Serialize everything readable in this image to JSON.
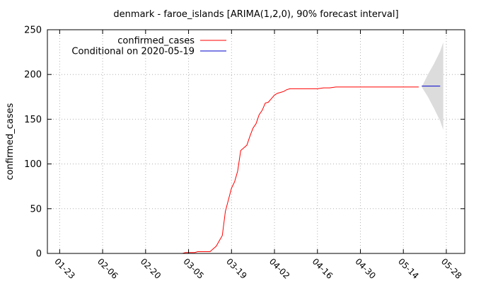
{
  "chart_data": {
    "type": "line",
    "title": "denmark - faroe_islands [ARIMA(1,2,0), 90% forecast interval]",
    "xlabel": "",
    "ylabel": "confirmed_cases",
    "ylim": [
      0,
      250
    ],
    "yticks": [
      0,
      50,
      100,
      150,
      200,
      250
    ],
    "xlim_day": [
      -4,
      132
    ],
    "xticks": [
      {
        "label": "01-23",
        "day": 0
      },
      {
        "label": "02-06",
        "day": 14
      },
      {
        "label": "02-20",
        "day": 28
      },
      {
        "label": "03-05",
        "day": 42
      },
      {
        "label": "03-19",
        "day": 56
      },
      {
        "label": "04-02",
        "day": 70
      },
      {
        "label": "04-16",
        "day": 84
      },
      {
        "label": "04-30",
        "day": 98
      },
      {
        "label": "05-14",
        "day": 112
      },
      {
        "label": "05-28",
        "day": 126
      }
    ],
    "grid": true,
    "legend_position": "top-left",
    "series": [
      {
        "name": "confirmed_cases",
        "color": "#ff0000",
        "points": [
          [
            0,
            0
          ],
          [
            10,
            0
          ],
          [
            20,
            0
          ],
          [
            30,
            0
          ],
          [
            40,
            0
          ],
          [
            41,
            1
          ],
          [
            42,
            1
          ],
          [
            43,
            1
          ],
          [
            44,
            1
          ],
          [
            45,
            2
          ],
          [
            46,
            2
          ],
          [
            47,
            2
          ],
          [
            48,
            2
          ],
          [
            49,
            2
          ],
          [
            50,
            5
          ],
          [
            51,
            8
          ],
          [
            52,
            14
          ],
          [
            53,
            20
          ],
          [
            54,
            47
          ],
          [
            55,
            60
          ],
          [
            56,
            73
          ],
          [
            57,
            80
          ],
          [
            58,
            92
          ],
          [
            59,
            115
          ],
          [
            60,
            118
          ],
          [
            61,
            121
          ],
          [
            62,
            131
          ],
          [
            63,
            140
          ],
          [
            64,
            145
          ],
          [
            65,
            155
          ],
          [
            66,
            160
          ],
          [
            67,
            168
          ],
          [
            68,
            169
          ],
          [
            69,
            173
          ],
          [
            70,
            177
          ],
          [
            71,
            179
          ],
          [
            72,
            180
          ],
          [
            73,
            181
          ],
          [
            74,
            183
          ],
          [
            75,
            184
          ],
          [
            76,
            184
          ],
          [
            80,
            184
          ],
          [
            84,
            184
          ],
          [
            86,
            185
          ],
          [
            88,
            185
          ],
          [
            90,
            186
          ],
          [
            95,
            186
          ],
          [
            100,
            186
          ],
          [
            105,
            186
          ],
          [
            110,
            186
          ],
          [
            117,
            186
          ]
        ]
      },
      {
        "name": "Conditional on 2020-05-19",
        "color": "#0000cc",
        "points": [
          [
            118,
            187
          ],
          [
            124,
            187
          ]
        ]
      }
    ],
    "forecast_interval": {
      "level": "90%",
      "fill": "#dcdcdc",
      "points": [
        {
          "day": 118,
          "low": 186,
          "high": 186
        },
        {
          "day": 120,
          "low": 175,
          "high": 200
        },
        {
          "day": 122,
          "low": 162,
          "high": 212
        },
        {
          "day": 124,
          "low": 148,
          "high": 226
        },
        {
          "day": 125,
          "low": 138,
          "high": 236
        }
      ]
    }
  }
}
